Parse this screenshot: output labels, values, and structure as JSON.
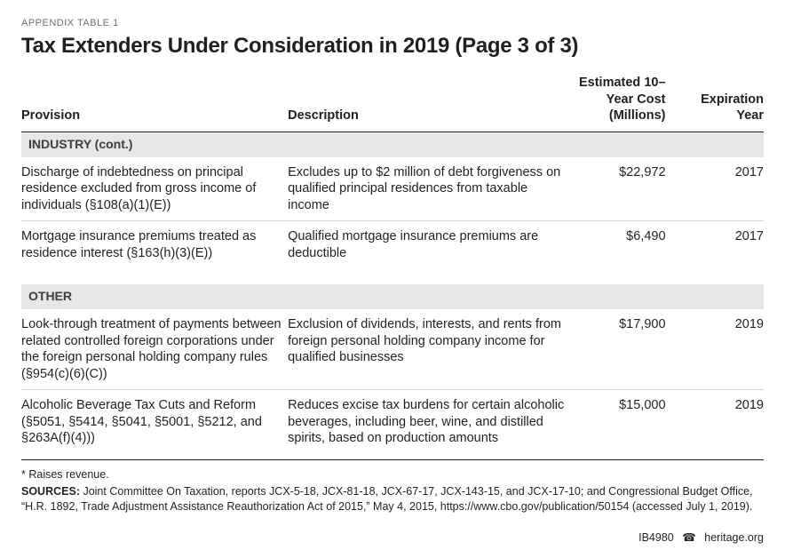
{
  "kicker": "APPENDIX TABLE 1",
  "title": "Tax Extenders Under Consideration in 2019 (Page 3 of 3)",
  "columns": {
    "provision": "Provision",
    "description": "Description",
    "cost": "Estimated 10–Year Cost (Millions)",
    "year": "Expiration Year"
  },
  "sections": [
    {
      "label": "INDUSTRY (cont.)",
      "rows": [
        {
          "provision": "Discharge of indebtedness on principal residence excluded from gross income of individuals (§108(a)(1)(E))",
          "description": "Excludes up to $2 million of debt forgiveness on qualified principal residences from taxable income",
          "cost": "$22,972",
          "year": "2017"
        },
        {
          "provision": "Mortgage insurance premiums treated as residence interest (§163(h)(3)(E))",
          "description": "Qualified mortgage insurance premiums are deductible",
          "cost": "$6,490",
          "year": "2017"
        }
      ]
    },
    {
      "label": "OTHER",
      "rows": [
        {
          "provision": "Look-through treatment of payments be­tween related controlled foreign corporations under the foreign personal holding company rules (§954(c)(6)(C))",
          "description": "Exclusion of dividends, interests, and rents from foreign personal holding company income for qualified businesses",
          "cost": "$17,900",
          "year": "2019"
        },
        {
          "provision": "Alcoholic Beverage Tax Cuts and Reform (§5051, §5414, §5041, §5001, §5212, and §263A(f)(4)))",
          "description": "Reduces excise tax burdens for certain alcoholic beverages, including beer, wine, and distilled spirits, based on production amounts",
          "cost": "$15,000",
          "year": "2019"
        }
      ]
    }
  ],
  "footnote": "* Raises revenue.",
  "sources_label": "SOURCES:",
  "sources_text": " Joint Committee On Taxation, reports JCX-5-18, JCX-81-18, JCX-67-17, JCX-143-15, and JCX-17-10; and Congressional Budget Office, “H.R. 1892, Trade Adjustment Assistance Reauthorization Act of 2015,” May 4, 2015, https://www.cbo.gov/publication/50154 (accessed July 1, 2019).",
  "footer": {
    "id": "IB4980",
    "icon": "☎",
    "site": "heritage.org"
  }
}
